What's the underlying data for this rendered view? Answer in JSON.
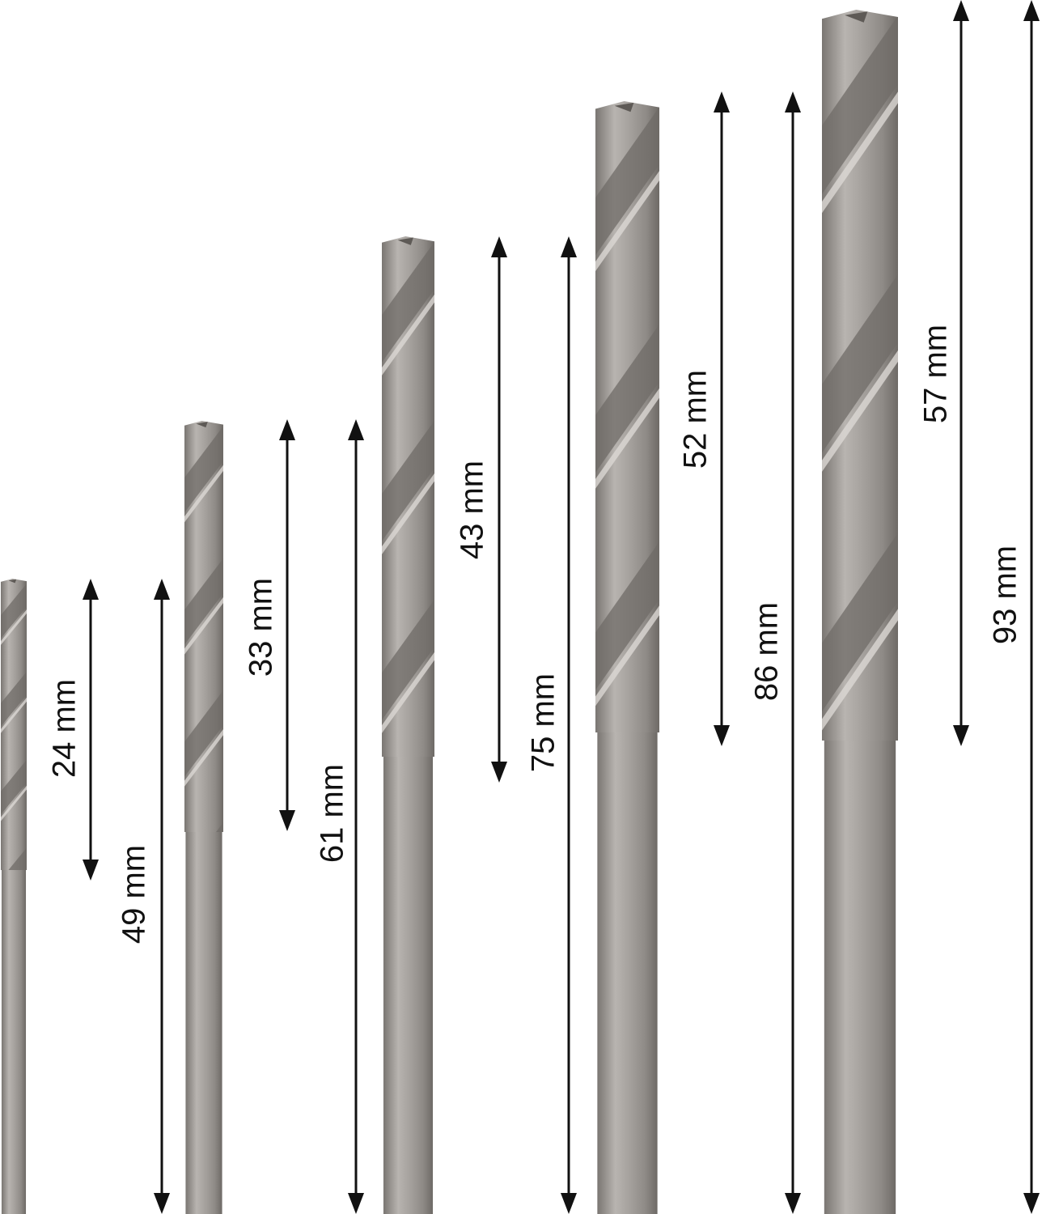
{
  "colors": {
    "steel_light": "#c8c4c0",
    "steel_mid": "#9c9894",
    "steel_dark": "#6e6a66",
    "arrow": "#111111",
    "background": "#ffffff"
  },
  "drills": [
    {
      "flute_length": "24 mm",
      "total_length": "49 mm"
    },
    {
      "flute_length": "33 mm",
      "total_length": "61 mm"
    },
    {
      "flute_length": "43 mm",
      "total_length": "75 mm"
    },
    {
      "flute_length": "52 mm",
      "total_length": "86 mm"
    },
    {
      "flute_length": "57 mm",
      "total_length": "93 mm"
    }
  ]
}
